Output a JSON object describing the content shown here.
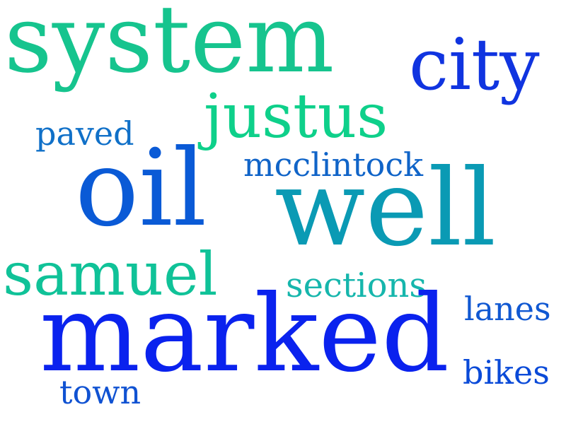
{
  "words": [
    {
      "text": "system",
      "color": "#16c48e"
    },
    {
      "text": "city",
      "color": "#1034e0"
    },
    {
      "text": "justus",
      "color": "#0ed08a"
    },
    {
      "text": "paved",
      "color": "#1070c8"
    },
    {
      "text": "mcclintock",
      "color": "#1064c8"
    },
    {
      "text": "oil",
      "color": "#0a5ad6"
    },
    {
      "text": "well",
      "color": "#0a9ab4"
    },
    {
      "text": "samuel",
      "color": "#10c298"
    },
    {
      "text": "sections",
      "color": "#16b6ac"
    },
    {
      "text": "lanes",
      "color": "#1058d2"
    },
    {
      "text": "marked",
      "color": "#0a22ee"
    },
    {
      "text": "bikes",
      "color": "#0a4ad8"
    },
    {
      "text": "town",
      "color": "#1052d2"
    }
  ]
}
